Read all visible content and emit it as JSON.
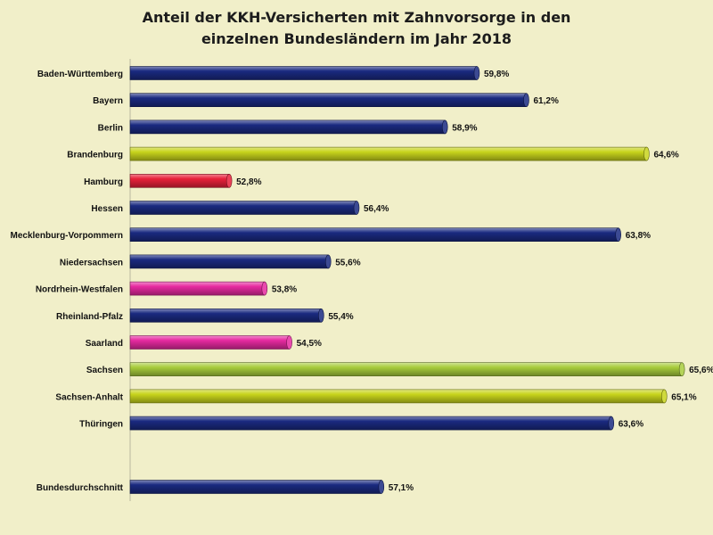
{
  "chart_data": {
    "type": "bar",
    "orientation": "horizontal",
    "title_line1": "Anteil der KKH-Versicherten mit Zahnvorsorge in den",
    "title_line2": "einzelnen Bundesländern im Jahr 2018",
    "xlim": [
      50,
      66
    ],
    "bars": [
      {
        "category": "Baden-Württemberg",
        "value": 59.8,
        "label": "59,8%",
        "color": "#1a2a80"
      },
      {
        "category": "Bayern",
        "value": 61.2,
        "label": "61,2%",
        "color": "#1a2a80"
      },
      {
        "category": "Berlin",
        "value": 58.9,
        "label": "58,9%",
        "color": "#1a2a80"
      },
      {
        "category": "Brandenburg",
        "value": 64.6,
        "label": "64,6%",
        "color": "#c8d41c"
      },
      {
        "category": "Hamburg",
        "value": 52.8,
        "label": "52,8%",
        "color": "#e8213a"
      },
      {
        "category": "Hessen",
        "value": 56.4,
        "label": "56,4%",
        "color": "#1a2a80"
      },
      {
        "category": "Mecklenburg-Vorpommern",
        "value": 63.8,
        "label": "63,8%",
        "color": "#1a2a80"
      },
      {
        "category": "Niedersachsen",
        "value": 55.6,
        "label": "55,6%",
        "color": "#1a2a80"
      },
      {
        "category": "Nordrhein-Westfalen",
        "value": 53.8,
        "label": "53,8%",
        "color": "#e62aa0"
      },
      {
        "category": "Rheinland-Pfalz",
        "value": 55.4,
        "label": "55,4%",
        "color": "#1a2a80"
      },
      {
        "category": "Saarland",
        "value": 54.5,
        "label": "54,5%",
        "color": "#e62aa0"
      },
      {
        "category": "Sachsen",
        "value": 65.6,
        "label": "65,6%",
        "color": "#a8cc3c"
      },
      {
        "category": "Sachsen-Anhalt",
        "value": 65.1,
        "label": "65,1%",
        "color": "#c8d41c"
      },
      {
        "category": "Thüringen",
        "value": 63.6,
        "label": "63,6%",
        "color": "#1a2a80"
      },
      {
        "category": "Bundesdurchschnitt",
        "value": 57.1,
        "label": "57,1%",
        "color": "#1a2a80",
        "separated": true
      }
    ],
    "grid": false,
    "legend": "none"
  }
}
